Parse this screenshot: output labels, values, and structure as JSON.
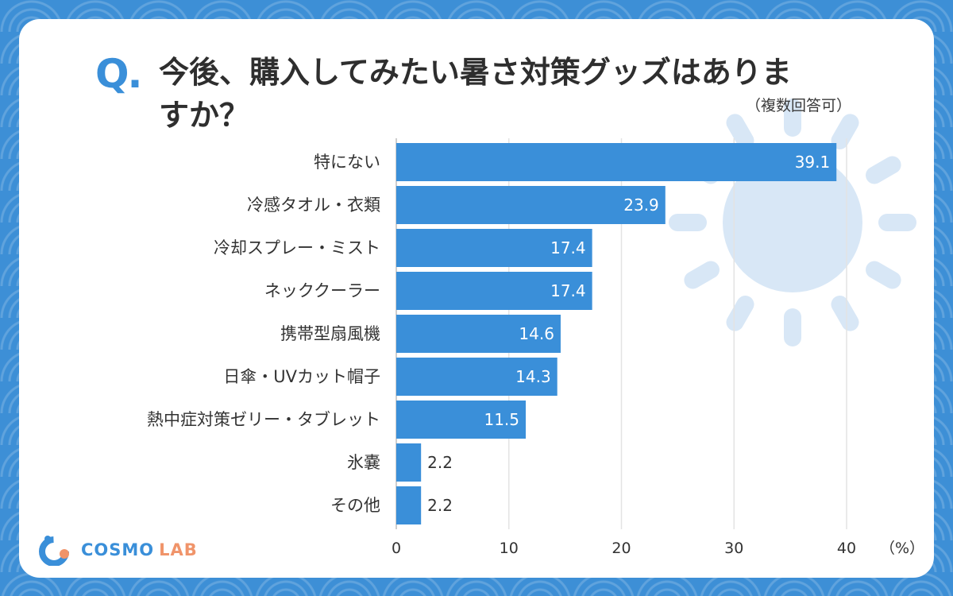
{
  "question": {
    "mark": "Q",
    "title_line1": "今後、購入してみたい暑さ対策グッズはありま",
    "title_line2": "すか？",
    "note": "（複数回答可）"
  },
  "brand": {
    "cosmo": "COSMO",
    "lab": "LAB"
  },
  "colors": {
    "bar": "#3a8fd9",
    "grid": "#e3e3e3",
    "sun": "#d8e7f6"
  },
  "chart_data": {
    "type": "bar",
    "orientation": "horizontal",
    "title": "今後、購入してみたい暑さ対策グッズはありますか？",
    "categories": [
      "特にない",
      "冷感タオル・衣類",
      "冷却スプレー・ミスト",
      "ネッククーラー",
      "携帯型扇風機",
      "日傘・UVカット帽子",
      "熱中症対策ゼリー・タブレット",
      "氷嚢",
      "その他"
    ],
    "values": [
      39.1,
      23.9,
      17.4,
      17.4,
      14.6,
      14.3,
      11.5,
      2.2,
      2.2
    ],
    "value_labels": [
      "39.1",
      "23.9",
      "17.4",
      "17.4",
      "14.6",
      "14.3",
      "11.5",
      "2.2",
      "2.2"
    ],
    "xlim": [
      0,
      40
    ],
    "xticks": [
      "0",
      "10",
      "20",
      "30",
      "40"
    ],
    "unit_label": "（%）",
    "grid": true
  }
}
